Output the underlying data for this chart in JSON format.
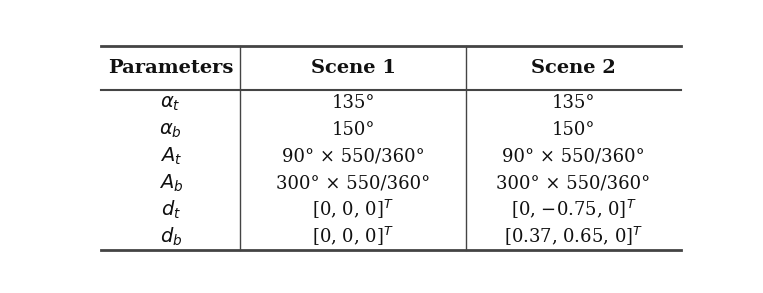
{
  "headers": [
    "Parameters",
    "Scene 1",
    "Scene 2"
  ],
  "col_labels": [
    {
      "key": "alpha_t",
      "latex": "$\\alpha_t$"
    },
    {
      "key": "alpha_b",
      "latex": "$\\alpha_b$"
    },
    {
      "key": "A_t",
      "latex": "$A_t$"
    },
    {
      "key": "A_b",
      "latex": "$A_b$"
    },
    {
      "key": "d_t",
      "latex": "$d_t$"
    },
    {
      "key": "d_b",
      "latex": "$d_b$"
    }
  ],
  "scene1": [
    "135°",
    "150°",
    "90° × 550/360°",
    "300° × 550/360°",
    "[0, 0, 0]$^T$",
    "[0, 0, 0]$^T$"
  ],
  "scene2": [
    "135°",
    "150°",
    "90° × 550/360°",
    "300° × 550/360°",
    "[0, −0.75, 0]$^T$",
    "[0.37, 0.65, 0]$^T$"
  ],
  "bg_color": "#ffffff",
  "line_color": "#444444",
  "text_color": "#111111",
  "header_fontsize": 14,
  "body_fontsize": 13
}
